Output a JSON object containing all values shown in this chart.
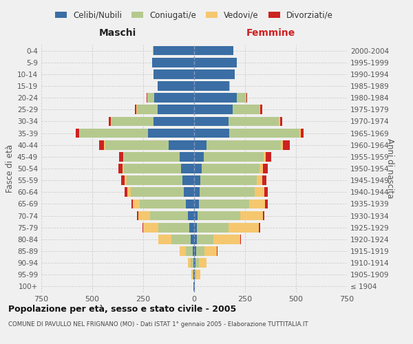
{
  "age_groups": [
    "100+",
    "95-99",
    "90-94",
    "85-89",
    "80-84",
    "75-79",
    "70-74",
    "65-69",
    "60-64",
    "55-59",
    "50-54",
    "45-49",
    "40-44",
    "35-39",
    "30-34",
    "25-29",
    "20-24",
    "15-19",
    "10-14",
    "5-9",
    "0-4"
  ],
  "birth_years": [
    "≤ 1904",
    "1905-1909",
    "1910-1914",
    "1915-1919",
    "1920-1924",
    "1925-1929",
    "1930-1934",
    "1935-1939",
    "1940-1944",
    "1945-1949",
    "1950-1954",
    "1955-1959",
    "1960-1964",
    "1965-1969",
    "1970-1974",
    "1975-1979",
    "1980-1984",
    "1985-1989",
    "1990-1994",
    "1995-1999",
    "2000-2004"
  ],
  "colors": {
    "celibe": "#3a6ea5",
    "coniugato": "#b5c98e",
    "vedovo": "#f5c76e",
    "divorziato": "#cc2222"
  },
  "males": {
    "celibe": [
      2,
      3,
      5,
      8,
      18,
      22,
      32,
      42,
      52,
      58,
      65,
      72,
      125,
      225,
      200,
      180,
      195,
      178,
      198,
      205,
      200
    ],
    "coniugato": [
      0,
      5,
      12,
      32,
      95,
      155,
      185,
      225,
      258,
      272,
      278,
      272,
      312,
      335,
      205,
      100,
      30,
      2,
      2,
      2,
      2
    ],
    "vedovo": [
      0,
      5,
      12,
      32,
      62,
      72,
      58,
      32,
      18,
      12,
      8,
      5,
      5,
      5,
      5,
      5,
      5,
      0,
      0,
      0,
      0
    ],
    "divorziato": [
      0,
      0,
      0,
      0,
      2,
      5,
      5,
      8,
      12,
      15,
      20,
      20,
      25,
      15,
      10,
      5,
      2,
      0,
      0,
      0,
      0
    ]
  },
  "females": {
    "nubile": [
      2,
      4,
      6,
      10,
      12,
      15,
      18,
      22,
      28,
      32,
      38,
      48,
      62,
      172,
      168,
      188,
      208,
      172,
      198,
      208,
      192
    ],
    "coniugata": [
      0,
      5,
      18,
      40,
      82,
      155,
      208,
      248,
      268,
      275,
      282,
      292,
      362,
      345,
      248,
      132,
      48,
      2,
      2,
      2,
      2
    ],
    "vedova": [
      2,
      22,
      38,
      62,
      132,
      148,
      112,
      78,
      48,
      28,
      18,
      12,
      12,
      5,
      5,
      5,
      2,
      0,
      0,
      0,
      0
    ],
    "divorziata": [
      0,
      0,
      0,
      2,
      5,
      5,
      8,
      12,
      16,
      20,
      25,
      25,
      32,
      16,
      12,
      10,
      2,
      0,
      0,
      0,
      0
    ]
  },
  "title": "Popolazione per età, sesso e stato civile - 2005",
  "subtitle": "COMUNE DI PAVULLO NEL FRIGNANO (MO) - Dati ISTAT 1° gennaio 2005 - Elaborazione TUTTITALIA.IT",
  "xlabel_left": "Maschi",
  "xlabel_right": "Femmine",
  "ylabel_left": "Fasce di età",
  "ylabel_right": "Anni di nascita",
  "xlim": 750,
  "legend_labels": [
    "Celibi/Nubili",
    "Coniugati/e",
    "Vedovi/e",
    "Divorziati/e"
  ],
  "bg_color": "#f0f0f0",
  "grid_color": "#cccccc"
}
